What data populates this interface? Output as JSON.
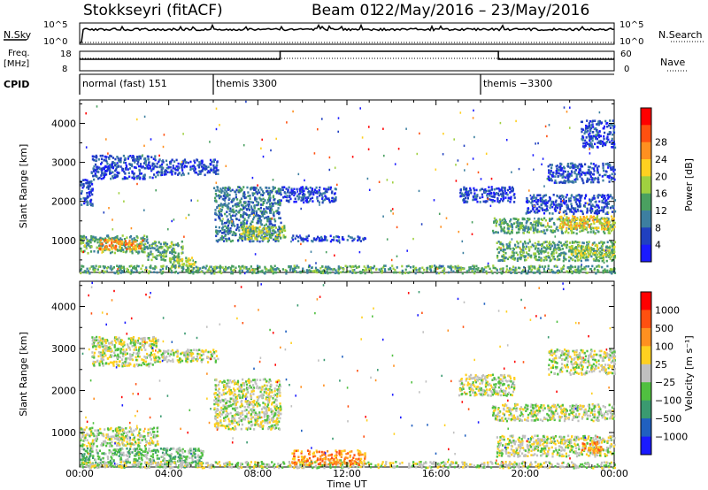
{
  "header": {
    "title": "Stokkseyri (fitACF)",
    "beam": "Beam 01",
    "dates": "22/May/2016 – 23/May/2016"
  },
  "top_panels": {
    "nsky_label": "N.Sky",
    "nsky_top": "10^5",
    "nsky_bottom": "10^0",
    "nsearch_label": "N.Search",
    "nsearch_top": "10^5",
    "nsearch_bottom": "10^0",
    "freq_label_1": "Freq.",
    "freq_label_2": "[MHz]",
    "freq_top": "18",
    "freq_bottom": "8",
    "nave_label": "Nave",
    "nave_top": "60",
    "nave_bottom": "0",
    "cpid_label": "CPID",
    "cpid_segments": [
      {
        "label": "normal (fast) 151",
        "start_h": 0.0
      },
      {
        "label": "themis 3300",
        "start_h": 6.0
      },
      {
        "label": "themis −3300",
        "start_h": 18.0
      }
    ]
  },
  "chart_data": [
    {
      "type": "heatmap",
      "name": "power-panel",
      "ylabel": "Slant Range [km]",
      "xlabel": "",
      "x_range_hours": [
        0,
        24
      ],
      "y_range_km": [
        180,
        4600
      ],
      "yticks": [
        1000,
        2000,
        3000,
        4000
      ],
      "xticks": [
        "00:00",
        "04:00",
        "08:00",
        "12:00",
        "16:00",
        "20:00",
        "00:00"
      ],
      "colorbar": {
        "label": "Power [dB]",
        "ticks": [
          "4",
          "8",
          "12",
          "16",
          "20",
          "24",
          "28"
        ],
        "colors": [
          "#1a1aff",
          "#2040c0",
          "#3d7fa0",
          "#4aa060",
          "#a0d040",
          "#ffd020",
          "#ff9020",
          "#ff5010",
          "#ff0000"
        ]
      },
      "regions": [
        {
          "h0": 0.0,
          "h1": 3.0,
          "km0": 700,
          "km1": 1150,
          "level": 3
        },
        {
          "h0": 0.8,
          "h1": 2.8,
          "km0": 780,
          "km1": 1050,
          "level": 6
        },
        {
          "h0": 3.0,
          "h1": 4.6,
          "km0": 500,
          "km1": 1000,
          "level": 3
        },
        {
          "h0": 4.0,
          "h1": 5.2,
          "km0": 300,
          "km1": 600,
          "level": 4
        },
        {
          "h0": 0.0,
          "h1": 24.0,
          "km0": 180,
          "km1": 380,
          "level": 3
        },
        {
          "h0": 0.0,
          "h1": 0.6,
          "km0": 1900,
          "km1": 2600,
          "level": 1
        },
        {
          "h0": 0.5,
          "h1": 3.5,
          "km0": 2600,
          "km1": 3200,
          "level": 1
        },
        {
          "h0": 3.5,
          "h1": 6.2,
          "km0": 2700,
          "km1": 3100,
          "level": 1
        },
        {
          "h0": 6.0,
          "h1": 9.0,
          "km0": 1000,
          "km1": 2400,
          "level": 2
        },
        {
          "h0": 7.2,
          "h1": 9.2,
          "km0": 1050,
          "km1": 1400,
          "level": 4
        },
        {
          "h0": 9.5,
          "h1": 12.8,
          "km0": 1000,
          "km1": 1150,
          "level": 1
        },
        {
          "h0": 9.0,
          "h1": 11.5,
          "km0": 2000,
          "km1": 2400,
          "level": 1
        },
        {
          "h0": 17.0,
          "h1": 19.5,
          "km0": 2000,
          "km1": 2400,
          "level": 1
        },
        {
          "h0": 18.5,
          "h1": 24.0,
          "km0": 1200,
          "km1": 1600,
          "level": 3
        },
        {
          "h0": 21.5,
          "h1": 24.0,
          "km0": 1300,
          "km1": 1650,
          "level": 5
        },
        {
          "h0": 18.7,
          "h1": 24.0,
          "km0": 500,
          "km1": 1000,
          "level": 3
        },
        {
          "h0": 22.0,
          "h1": 24.0,
          "km0": 600,
          "km1": 900,
          "level": 4
        },
        {
          "h0": 20.0,
          "h1": 24.0,
          "km0": 1700,
          "km1": 2200,
          "level": 1
        },
        {
          "h0": 21.0,
          "h1": 24.0,
          "km0": 2500,
          "km1": 3000,
          "level": 1
        },
        {
          "h0": 22.5,
          "h1": 24.0,
          "km0": 3400,
          "km1": 4100,
          "level": 1
        }
      ]
    },
    {
      "type": "heatmap",
      "name": "velocity-panel",
      "ylabel": "Slant Range [km]",
      "xlabel": "Time UT",
      "x_range_hours": [
        0,
        24
      ],
      "y_range_km": [
        180,
        4600
      ],
      "yticks": [
        1000,
        2000,
        3000,
        4000
      ],
      "xticks": [
        "00:00",
        "04:00",
        "08:00",
        "12:00",
        "16:00",
        "20:00",
        "00:00"
      ],
      "colorbar": {
        "label": "Velocity [m s⁻¹]",
        "ticks": [
          "1000",
          "500",
          "100",
          "25",
          "−25",
          "−100",
          "−500",
          "−1000"
        ],
        "colors": [
          "#1a1aff",
          "#2060c0",
          "#3a9a70",
          "#50c040",
          "#c0c0c0",
          "#ffd020",
          "#ff9020",
          "#ff5010",
          "#ff0000"
        ]
      },
      "regions": [
        {
          "h0": 0.0,
          "h1": 3.5,
          "km0": 700,
          "km1": 1150,
          "level": 4
        },
        {
          "h0": 0.0,
          "h1": 5.5,
          "km0": 200,
          "km1": 650,
          "level": 3
        },
        {
          "h0": 0.0,
          "h1": 24.0,
          "km0": 180,
          "km1": 330,
          "level": 4
        },
        {
          "h0": 0.5,
          "h1": 3.5,
          "km0": 2600,
          "km1": 3300,
          "level": 4
        },
        {
          "h0": 3.5,
          "h1": 6.2,
          "km0": 2700,
          "km1": 3000,
          "level": 4
        },
        {
          "h0": 6.0,
          "h1": 9.0,
          "km0": 1100,
          "km1": 2300,
          "level": 4
        },
        {
          "h0": 17.0,
          "h1": 19.5,
          "km0": 1900,
          "km1": 2400,
          "level": 4
        },
        {
          "h0": 18.5,
          "h1": 24.0,
          "km0": 1300,
          "km1": 1700,
          "level": 4
        },
        {
          "h0": 18.7,
          "h1": 24.0,
          "km0": 450,
          "km1": 950,
          "level": 4
        },
        {
          "h0": 22.5,
          "h1": 23.5,
          "km0": 550,
          "km1": 800,
          "level": 6
        },
        {
          "h0": 21.0,
          "h1": 24.0,
          "km0": 2400,
          "km1": 3000,
          "level": 4
        },
        {
          "h0": 9.5,
          "h1": 12.8,
          "km0": 250,
          "km1": 600,
          "level": 6
        }
      ]
    }
  ]
}
